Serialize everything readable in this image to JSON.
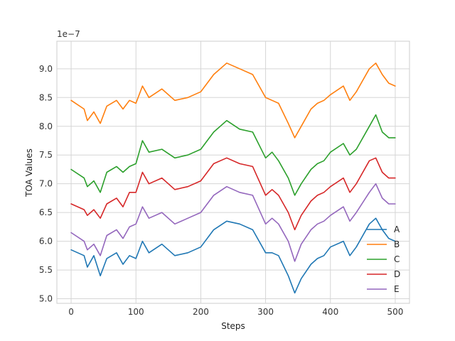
{
  "chart_data": {
    "type": "line",
    "title": "",
    "xlabel": "Steps",
    "ylabel": "TOA Values",
    "offset_text": "1e−7",
    "xlim": [
      -22,
      522
    ],
    "ylim": [
      4.92,
      9.48
    ],
    "xticks": [
      0,
      100,
      200,
      300,
      400,
      500
    ],
    "yticks": [
      5.0,
      5.5,
      6.0,
      6.5,
      7.0,
      7.5,
      8.0,
      8.5,
      9.0
    ],
    "ytick_labels": [
      "5.0",
      "5.5",
      "6.0",
      "6.5",
      "7.0",
      "7.5",
      "8.0",
      "8.5",
      "9.0"
    ],
    "grid": true,
    "legend_position": "bottom-right",
    "series": [
      {
        "name": "A",
        "color": "#1f77b4",
        "x": [
          0,
          20,
          25,
          35,
          45,
          55,
          70,
          80,
          90,
          100,
          110,
          120,
          140,
          160,
          180,
          200,
          220,
          240,
          260,
          280,
          300,
          310,
          320,
          335,
          345,
          355,
          370,
          380,
          390,
          400,
          420,
          430,
          440,
          460,
          470,
          480,
          490,
          500
        ],
        "values": [
          5.85,
          5.75,
          5.55,
          5.75,
          5.4,
          5.7,
          5.8,
          5.6,
          5.75,
          5.7,
          6.0,
          5.8,
          5.95,
          5.75,
          5.8,
          5.9,
          6.2,
          6.35,
          6.3,
          6.2,
          5.8,
          5.8,
          5.75,
          5.4,
          5.1,
          5.35,
          5.6,
          5.7,
          5.75,
          5.9,
          6.0,
          5.75,
          5.9,
          6.3,
          6.4,
          6.2,
          6.05,
          6.0
        ]
      },
      {
        "name": "B",
        "color": "#ff7f0e",
        "x": [
          0,
          20,
          25,
          35,
          45,
          55,
          70,
          80,
          90,
          100,
          110,
          120,
          140,
          160,
          180,
          200,
          220,
          240,
          260,
          280,
          300,
          310,
          320,
          335,
          345,
          355,
          370,
          380,
          390,
          400,
          420,
          430,
          440,
          460,
          470,
          480,
          490,
          500
        ],
        "values": [
          8.45,
          8.3,
          8.1,
          8.25,
          8.05,
          8.35,
          8.45,
          8.3,
          8.45,
          8.4,
          8.7,
          8.5,
          8.65,
          8.45,
          8.5,
          8.6,
          8.9,
          9.1,
          9.0,
          8.9,
          8.5,
          8.45,
          8.4,
          8.05,
          7.8,
          8.0,
          8.3,
          8.4,
          8.45,
          8.55,
          8.7,
          8.45,
          8.6,
          9.0,
          9.1,
          8.9,
          8.75,
          8.7
        ]
      },
      {
        "name": "C",
        "color": "#2ca02c",
        "x": [
          0,
          20,
          25,
          35,
          45,
          55,
          70,
          80,
          90,
          100,
          110,
          120,
          140,
          160,
          180,
          200,
          220,
          240,
          260,
          280,
          300,
          310,
          320,
          335,
          345,
          355,
          370,
          380,
          390,
          400,
          420,
          430,
          440,
          460,
          470,
          480,
          490,
          500
        ],
        "values": [
          7.25,
          7.1,
          6.95,
          7.05,
          6.85,
          7.2,
          7.3,
          7.2,
          7.3,
          7.35,
          7.75,
          7.55,
          7.6,
          7.45,
          7.5,
          7.6,
          7.9,
          8.1,
          7.95,
          7.9,
          7.45,
          7.55,
          7.4,
          7.1,
          6.8,
          7.0,
          7.25,
          7.35,
          7.4,
          7.55,
          7.7,
          7.5,
          7.6,
          8.0,
          8.2,
          7.9,
          7.8,
          7.8
        ]
      },
      {
        "name": "D",
        "color": "#d62728",
        "x": [
          0,
          20,
          25,
          35,
          45,
          55,
          70,
          80,
          90,
          100,
          110,
          120,
          140,
          160,
          180,
          200,
          220,
          240,
          260,
          280,
          300,
          310,
          320,
          335,
          345,
          355,
          370,
          380,
          390,
          400,
          420,
          430,
          440,
          460,
          470,
          480,
          490,
          500
        ],
        "values": [
          6.65,
          6.55,
          6.45,
          6.55,
          6.4,
          6.65,
          6.75,
          6.6,
          6.85,
          6.85,
          7.2,
          7.0,
          7.1,
          6.9,
          6.95,
          7.05,
          7.35,
          7.45,
          7.35,
          7.3,
          6.8,
          6.9,
          6.8,
          6.5,
          6.2,
          6.45,
          6.7,
          6.8,
          6.85,
          6.95,
          7.1,
          6.85,
          7.0,
          7.4,
          7.45,
          7.2,
          7.1,
          7.1
        ]
      },
      {
        "name": "E",
        "color": "#9467bd",
        "x": [
          0,
          20,
          25,
          35,
          45,
          55,
          70,
          80,
          90,
          100,
          110,
          120,
          140,
          160,
          180,
          200,
          220,
          240,
          260,
          280,
          300,
          310,
          320,
          335,
          345,
          355,
          370,
          380,
          390,
          400,
          420,
          430,
          440,
          460,
          470,
          480,
          490,
          500
        ],
        "values": [
          6.15,
          6.0,
          5.85,
          5.95,
          5.75,
          6.1,
          6.2,
          6.05,
          6.25,
          6.3,
          6.6,
          6.4,
          6.5,
          6.3,
          6.4,
          6.5,
          6.8,
          6.95,
          6.85,
          6.8,
          6.3,
          6.4,
          6.3,
          6.0,
          5.65,
          5.95,
          6.2,
          6.3,
          6.35,
          6.45,
          6.6,
          6.35,
          6.5,
          6.85,
          7.0,
          6.75,
          6.65,
          6.65
        ]
      }
    ]
  }
}
